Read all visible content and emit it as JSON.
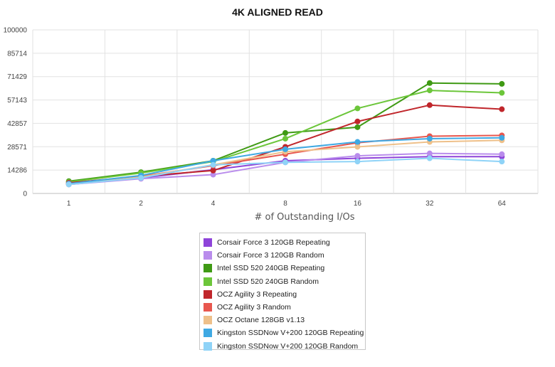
{
  "chart_data": {
    "type": "line",
    "title": "4K ALIGNED READ",
    "xlabel": "# of Outstanding I/Os",
    "ylabel": "",
    "categories": [
      "1",
      "2",
      "4",
      "8",
      "16",
      "32",
      "64"
    ],
    "yticks": [
      "0",
      "14286",
      "28571",
      "42857",
      "57143",
      "71429",
      "85714",
      "100000"
    ],
    "ylim": [
      0,
      100000
    ],
    "grid": true,
    "legend_position": "bottom-center",
    "series": [
      {
        "name": "Corsair Force 3 120GB Repeating",
        "color": "#8e44d9",
        "values": [
          5500,
          9500,
          14500,
          20000,
          21500,
          22500,
          22500
        ]
      },
      {
        "name": "Corsair Force 3 120GB Random",
        "color": "#b98cec",
        "values": [
          5500,
          9000,
          11500,
          19000,
          23000,
          24500,
          24000
        ]
      },
      {
        "name": "Intel SSD 520 240GB Repeating",
        "color": "#3f9a14",
        "values": [
          7500,
          13000,
          20000,
          37000,
          40500,
          67500,
          67000
        ]
      },
      {
        "name": "Intel SSD 520 240GB Random",
        "color": "#6cc63a",
        "values": [
          7000,
          12500,
          19500,
          33500,
          52000,
          63000,
          61500
        ]
      },
      {
        "name": "OCZ Agility 3 Repeating",
        "color": "#c0262b",
        "values": [
          6500,
          10500,
          14000,
          28500,
          44000,
          54000,
          51500
        ]
      },
      {
        "name": "OCZ Agility 3 Random",
        "color": "#e8574e",
        "values": [
          6000,
          10500,
          17000,
          24000,
          31000,
          35000,
          35500
        ]
      },
      {
        "name": "OCZ Octane 128GB v1.13",
        "color": "#eec08a",
        "values": [
          5500,
          10000,
          17500,
          25500,
          28500,
          31500,
          32500
        ]
      },
      {
        "name": "Kingston SSDNow V+200 120GB Repeating",
        "color": "#3fa9e3",
        "values": [
          6000,
          11000,
          20000,
          27000,
          31500,
          33500,
          34000
        ]
      },
      {
        "name": "Kingston SSDNow V+200 120GB Random",
        "color": "#8fd3f7",
        "values": [
          5500,
          9500,
          17500,
          19000,
          19500,
          21500,
          19500
        ]
      }
    ]
  }
}
